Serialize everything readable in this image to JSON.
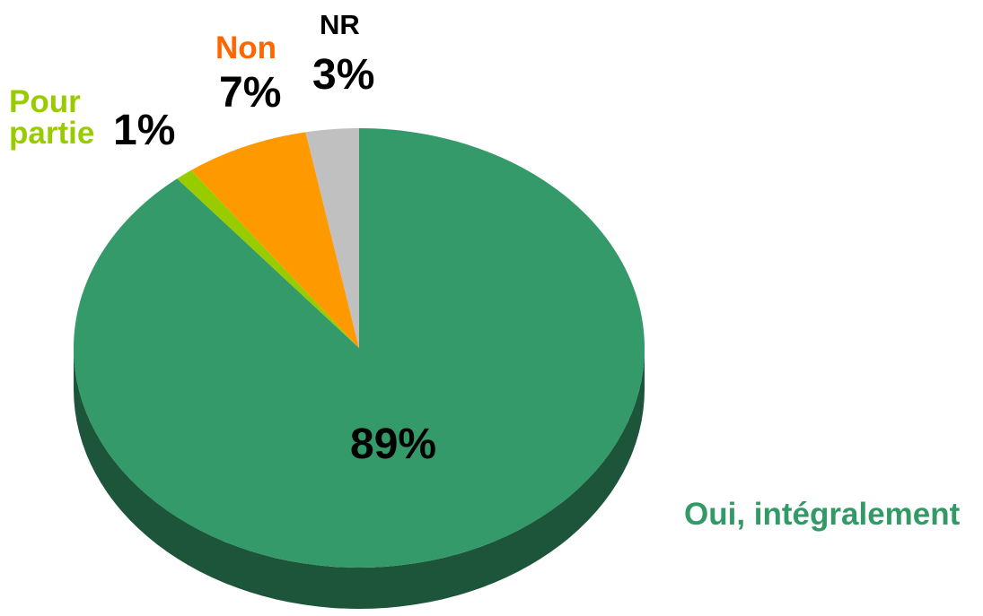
{
  "chart_data": {
    "type": "pie3d",
    "categories": [
      "Oui, intégralement",
      "Pour partie",
      "Non",
      "NR"
    ],
    "values": [
      89,
      1,
      7,
      3
    ],
    "value_labels": [
      "89%",
      "1%",
      "7%",
      "3%"
    ],
    "colors": [
      "#349a69",
      "#99cc00",
      "#ff9900",
      "#c0c0c0"
    ],
    "label_colors": [
      "#339966",
      "#99cc00",
      "#ff6600",
      "#000000"
    ]
  }
}
